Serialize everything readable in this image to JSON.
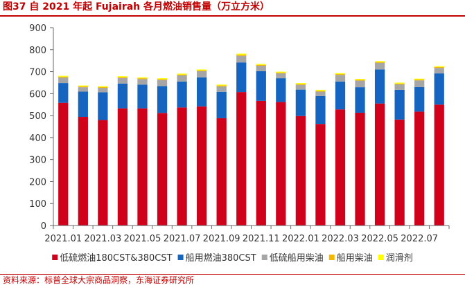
{
  "title": "图37  自 2021 年起 Fujairah 各月燃油销售量（万立方米）",
  "source": "资料来源：标普全球大宗商品洞察，东海证券研究所",
  "chart_data": {
    "type": "bar",
    "stacked": true,
    "categories": [
      "2021.01",
      "2021.02",
      "2021.03",
      "2021.04",
      "2021.05",
      "2021.06",
      "2021.07",
      "2021.08",
      "2021.09",
      "2021.10",
      "2021.11",
      "2021.12",
      "2022.01",
      "2022.02",
      "2022.03",
      "2022.04",
      "2022.05",
      "2022.06",
      "2022.07",
      "2022.08"
    ],
    "xtick_labels": [
      "2021.01",
      "2021.03",
      "2021.05",
      "2021.07",
      "2021.09",
      "2021.11",
      "2022.01",
      "2022.03",
      "2022.05",
      "2022.07"
    ],
    "yticks": [
      0,
      100,
      200,
      300,
      400,
      500,
      600,
      700,
      800,
      900
    ],
    "ylim": [
      0,
      900
    ],
    "legend_position": "bottom",
    "grid": false,
    "series": [
      {
        "name": "低硫燃油180CST&380CST",
        "color": "#d0021b",
        "values": [
          558,
          494,
          480,
          533,
          533,
          512,
          537,
          542,
          488,
          607,
          567,
          562,
          498,
          462,
          528,
          513,
          555,
          482,
          518,
          550
        ]
      },
      {
        "name": "船用燃油380CST",
        "color": "#1565c0",
        "values": [
          90,
          115,
          126,
          113,
          108,
          122,
          118,
          132,
          120,
          135,
          135,
          108,
          120,
          127,
          127,
          116,
          155,
          135,
          112,
          142
        ]
      },
      {
        "name": "低硫船用柴油",
        "color": "#a6a6a6",
        "values": [
          25,
          20,
          20,
          25,
          25,
          28,
          28,
          28,
          25,
          30,
          25,
          22,
          22,
          20,
          30,
          30,
          30,
          25,
          30,
          25
        ]
      },
      {
        "name": "船用柴油",
        "color": "#f5b800",
        "values": [
          4,
          4,
          4,
          4,
          4,
          4,
          4,
          4,
          4,
          5,
          4,
          4,
          4,
          4,
          4,
          4,
          4,
          4,
          4,
          4
        ]
      },
      {
        "name": "润滑剂",
        "color": "#ffff00",
        "values": [
          4,
          4,
          4,
          4,
          4,
          4,
          4,
          4,
          4,
          5,
          4,
          4,
          4,
          4,
          4,
          4,
          4,
          4,
          4,
          4
        ]
      }
    ]
  }
}
